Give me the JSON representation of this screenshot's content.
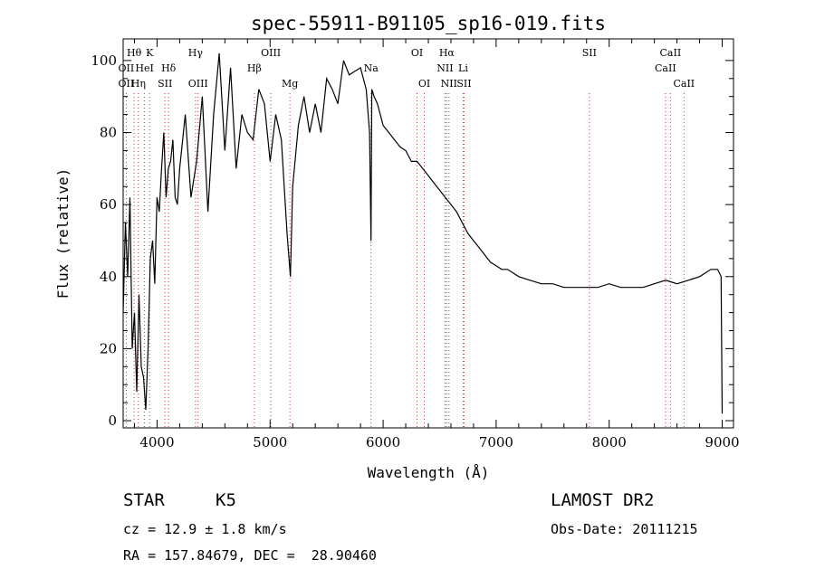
{
  "chart_data": {
    "type": "line",
    "title": "spec-55911-B91105_sp16-019.fits",
    "xlabel": "Wavelength (Å)",
    "ylabel": "Flux (relative)",
    "xlim": [
      3700,
      9100
    ],
    "ylim": [
      -2,
      106
    ],
    "xticks": [
      4000,
      5000,
      6000,
      7000,
      8000,
      9000
    ],
    "yticks": [
      0,
      20,
      40,
      60,
      80,
      100
    ],
    "grid": false,
    "series": [
      {
        "x": [
          3700,
          3720,
          3740,
          3760,
          3780,
          3800,
          3820,
          3840,
          3860,
          3880,
          3900,
          3920,
          3940,
          3960,
          3980,
          4000,
          4020,
          4040,
          4060,
          4080,
          4100,
          4120,
          4140,
          4160,
          4180,
          4200,
          4250,
          4300,
          4350,
          4400,
          4450,
          4500,
          4550,
          4600,
          4650,
          4700,
          4750,
          4800,
          4850,
          4900,
          4950,
          5000,
          5050,
          5100,
          5150,
          5180,
          5200,
          5250,
          5300,
          5350,
          5400,
          5450,
          5500,
          5550,
          5600,
          5650,
          5700,
          5750,
          5800,
          5850,
          5880,
          5893,
          5900,
          5920,
          5950,
          6000,
          6050,
          6100,
          6150,
          6200,
          6250,
          6300,
          6350,
          6400,
          6450,
          6500,
          6550,
          6600,
          6650,
          6700,
          6750,
          6800,
          6850,
          6900,
          6950,
          7000,
          7050,
          7100,
          7150,
          7200,
          7300,
          7400,
          7500,
          7600,
          7700,
          7800,
          7900,
          8000,
          8100,
          8200,
          8300,
          8400,
          8500,
          8600,
          8700,
          8800,
          8900,
          8960,
          8990,
          9000
        ],
        "values": [
          30,
          55,
          40,
          62,
          20,
          30,
          8,
          35,
          15,
          12,
          3,
          20,
          45,
          50,
          38,
          62,
          58,
          70,
          80,
          62,
          70,
          72,
          78,
          62,
          60,
          70,
          85,
          62,
          72,
          90,
          58,
          85,
          102,
          75,
          98,
          70,
          85,
          80,
          78,
          92,
          88,
          72,
          85,
          78,
          52,
          40,
          65,
          82,
          90,
          80,
          88,
          80,
          95,
          92,
          88,
          100,
          96,
          97,
          98,
          92,
          80,
          50,
          92,
          90,
          88,
          82,
          80,
          78,
          76,
          75,
          72,
          72,
          70,
          68,
          66,
          64,
          62,
          60,
          58,
          55,
          52,
          50,
          48,
          46,
          44,
          43,
          42,
          42,
          41,
          40,
          39,
          38,
          38,
          37,
          37,
          37,
          37,
          38,
          37,
          37,
          37,
          38,
          39,
          38,
          39,
          40,
          42,
          42,
          40,
          2
        ]
      }
    ],
    "annotations": {
      "lines": [
        {
          "label": "Hθ",
          "wave": 3797,
          "row": 1
        },
        {
          "label": "OII",
          "wave": 3727,
          "row": 2
        },
        {
          "label": "OII",
          "wave": 3727,
          "row": 3
        },
        {
          "label": "K",
          "wave": 3934,
          "row": 1
        },
        {
          "label": "HeI",
          "wave": 3889,
          "row": 2
        },
        {
          "label": "Hη",
          "wave": 3835,
          "row": 3
        },
        {
          "label": "Hδ",
          "wave": 4102,
          "row": 2
        },
        {
          "label": "SII",
          "wave": 4070,
          "row": 3
        },
        {
          "label": "Hγ",
          "wave": 4340,
          "row": 1
        },
        {
          "label": "OIII",
          "wave": 4363,
          "row": 3
        },
        {
          "label": "Hβ",
          "wave": 4861,
          "row": 2
        },
        {
          "label": "OIII",
          "wave": 5007,
          "row": 1
        },
        {
          "label": "Mg",
          "wave": 5175,
          "row": 3
        },
        {
          "label": "Na",
          "wave": 5893,
          "row": 2
        },
        {
          "label": "OI",
          "wave": 6300,
          "row": 1
        },
        {
          "label": "OI",
          "wave": 6364,
          "row": 3
        },
        {
          "label": "Hα",
          "wave": 6563,
          "row": 1
        },
        {
          "label": "NII",
          "wave": 6548,
          "row": 2
        },
        {
          "label": "Li",
          "wave": 6708,
          "row": 2
        },
        {
          "label": "NII",
          "wave": 6583,
          "row": 3
        },
        {
          "label": "SII",
          "wave": 6716,
          "row": 3
        },
        {
          "label": "SII",
          "wave": 7825,
          "row": 1
        },
        {
          "label": "CaII",
          "wave": 8542,
          "row": 1
        },
        {
          "label": "CaII",
          "wave": 8498,
          "row": 2
        },
        {
          "label": "CaII",
          "wave": 8662,
          "row": 3
        }
      ]
    }
  },
  "info": {
    "class_label": "STAR",
    "subclass_label": "K5",
    "survey": "LAMOST DR2",
    "cz": "cz = 12.9 ± 1.8 km/s",
    "obs_date": "Obs-Date: 20111215",
    "coords": "RA = 157.84679, DEC =  28.90460"
  }
}
